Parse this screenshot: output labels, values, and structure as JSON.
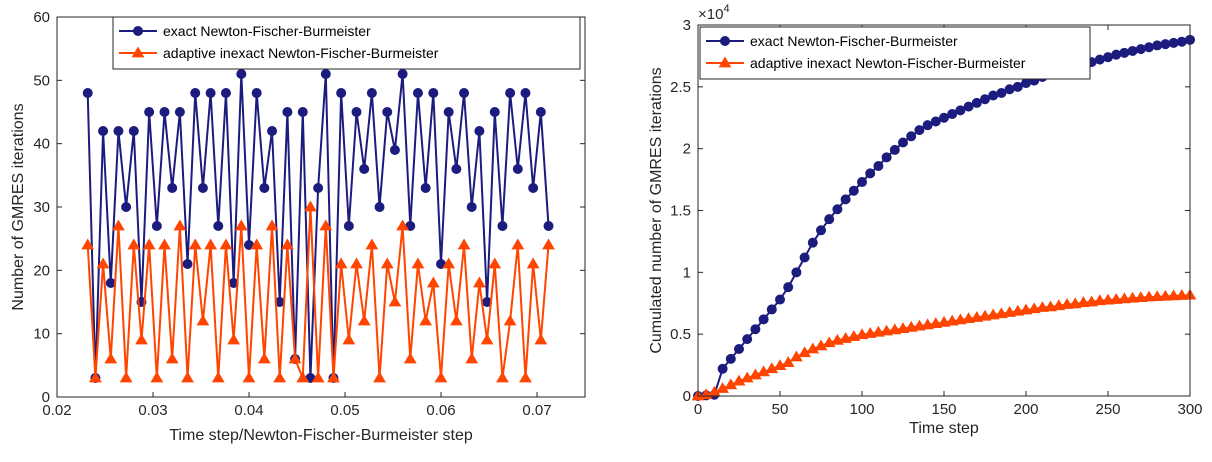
{
  "chart_data": [
    {
      "type": "line",
      "x_label": "Time step/Newton-Fischer-Burmeister step",
      "y_label": "Number of GMRES iterations",
      "xlim": [
        0.02,
        0.075
      ],
      "xticks": [
        0.02,
        0.03,
        0.04,
        0.05,
        0.06,
        0.07
      ],
      "ylim": [
        0,
        60
      ],
      "yticks": [
        0,
        10,
        20,
        30,
        40,
        50,
        60
      ],
      "grid": false,
      "legend_position": "top",
      "x": [
        0.0232,
        0.024,
        0.0248,
        0.0256,
        0.0264,
        0.0272,
        0.028,
        0.0288,
        0.0296,
        0.0304,
        0.0312,
        0.032,
        0.0328,
        0.0336,
        0.0344,
        0.0352,
        0.036,
        0.0368,
        0.0376,
        0.0384,
        0.0392,
        0.04,
        0.0408,
        0.0416,
        0.0424,
        0.0432,
        0.044,
        0.0448,
        0.0456,
        0.0464,
        0.0472,
        0.048,
        0.0488,
        0.0496,
        0.0504,
        0.0512,
        0.052,
        0.0528,
        0.0536,
        0.0544,
        0.0552,
        0.056,
        0.0568,
        0.0576,
        0.0584,
        0.0592,
        0.06,
        0.0608,
        0.0616,
        0.0624,
        0.0632,
        0.064,
        0.0648,
        0.0656,
        0.0664,
        0.0672,
        0.068,
        0.0688,
        0.0696,
        0.0704,
        0.0712
      ],
      "series": [
        {
          "name": "exact Newton-Fischer-Burmeister",
          "color": "#1c1c7e",
          "marker": "circle",
          "values": [
            48,
            3,
            42,
            18,
            42,
            30,
            42,
            15,
            45,
            27,
            45,
            33,
            45,
            21,
            48,
            33,
            48,
            27,
            48,
            18,
            51,
            24,
            48,
            33,
            42,
            15,
            45,
            6,
            45,
            3,
            33,
            51,
            3,
            48,
            27,
            45,
            36,
            48,
            30,
            45,
            39,
            51,
            27,
            48,
            33,
            48,
            21,
            45,
            36,
            48,
            30,
            42,
            15,
            45,
            27,
            48,
            36,
            48,
            33,
            45,
            27
          ]
        },
        {
          "name": "adaptive inexact Newton-Fischer-Burmeister",
          "color": "#ff4500",
          "marker": "triangle",
          "values": [
            24,
            3,
            21,
            6,
            27,
            3,
            24,
            9,
            24,
            3,
            24,
            6,
            27,
            3,
            24,
            12,
            24,
            3,
            24,
            9,
            27,
            3,
            24,
            6,
            27,
            3,
            24,
            6,
            3,
            30,
            3,
            27,
            3,
            21,
            9,
            21,
            12,
            24,
            3,
            21,
            15,
            27,
            6,
            21,
            12,
            18,
            3,
            21,
            12,
            24,
            6,
            18,
            9,
            21,
            3,
            12,
            24,
            3,
            21,
            9,
            24
          ]
        }
      ]
    },
    {
      "type": "line",
      "x_label": "Time step",
      "y_label": "Cumulated number of GMRES iterations",
      "y_multiplier": {
        "base": "×10",
        "power": "4"
      },
      "xlim": [
        0,
        300
      ],
      "xticks": [
        0,
        50,
        100,
        150,
        200,
        250,
        300
      ],
      "ylim": [
        0,
        30000
      ],
      "yticks": [
        {
          "value": 0,
          "label": "0"
        },
        {
          "value": 5000,
          "label": "0.5"
        },
        {
          "value": 10000,
          "label": "1"
        },
        {
          "value": 15000,
          "label": "1.5"
        },
        {
          "value": 20000,
          "label": "2"
        },
        {
          "value": 25000,
          "label": "2.5"
        },
        {
          "value": 30000,
          "label": "3"
        }
      ],
      "grid": false,
      "legend_position": "top-left",
      "x": [
        0,
        5,
        10,
        15,
        20,
        25,
        30,
        35,
        40,
        45,
        50,
        55,
        60,
        65,
        70,
        75,
        80,
        85,
        90,
        95,
        100,
        105,
        110,
        115,
        120,
        125,
        130,
        135,
        140,
        145,
        150,
        155,
        160,
        165,
        170,
        175,
        180,
        185,
        190,
        195,
        200,
        205,
        210,
        215,
        220,
        225,
        230,
        235,
        240,
        245,
        250,
        255,
        260,
        265,
        270,
        275,
        280,
        285,
        290,
        295,
        300
      ],
      "series": [
        {
          "name": "exact Newton-Fischer-Burmeister",
          "color": "#1c1c7e",
          "marker": "circle",
          "values": [
            0,
            50,
            100,
            2200,
            3000,
            3800,
            4600,
            5400,
            6200,
            7000,
            7800,
            8800,
            10000,
            11200,
            12400,
            13400,
            14300,
            15100,
            15900,
            16600,
            17300,
            18000,
            18600,
            19300,
            19900,
            20500,
            21000,
            21500,
            21900,
            22200,
            22500,
            22800,
            23100,
            23400,
            23700,
            24000,
            24300,
            24500,
            24800,
            25000,
            25300,
            25500,
            25800,
            26000,
            26200,
            26400,
            26600,
            26800,
            27000,
            27200,
            27400,
            27600,
            27750,
            27900,
            28050,
            28200,
            28350,
            28450,
            28550,
            28650,
            28800
          ]
        },
        {
          "name": "adaptive inexact Newton-Fischer-Burmeister",
          "color": "#ff4500",
          "marker": "triangle",
          "values": [
            0,
            100,
            300,
            600,
            900,
            1200,
            1450,
            1700,
            1950,
            2200,
            2450,
            2700,
            3150,
            3500,
            3800,
            4050,
            4300,
            4500,
            4650,
            4800,
            4950,
            5050,
            5150,
            5250,
            5350,
            5450,
            5550,
            5650,
            5750,
            5850,
            5950,
            6050,
            6150,
            6250,
            6350,
            6450,
            6550,
            6650,
            6750,
            6850,
            6950,
            7050,
            7150,
            7200,
            7300,
            7400,
            7450,
            7550,
            7600,
            7700,
            7750,
            7800,
            7850,
            7900,
            7950,
            8000,
            8030,
            8060,
            8090,
            8120,
            8150
          ]
        }
      ]
    }
  ]
}
